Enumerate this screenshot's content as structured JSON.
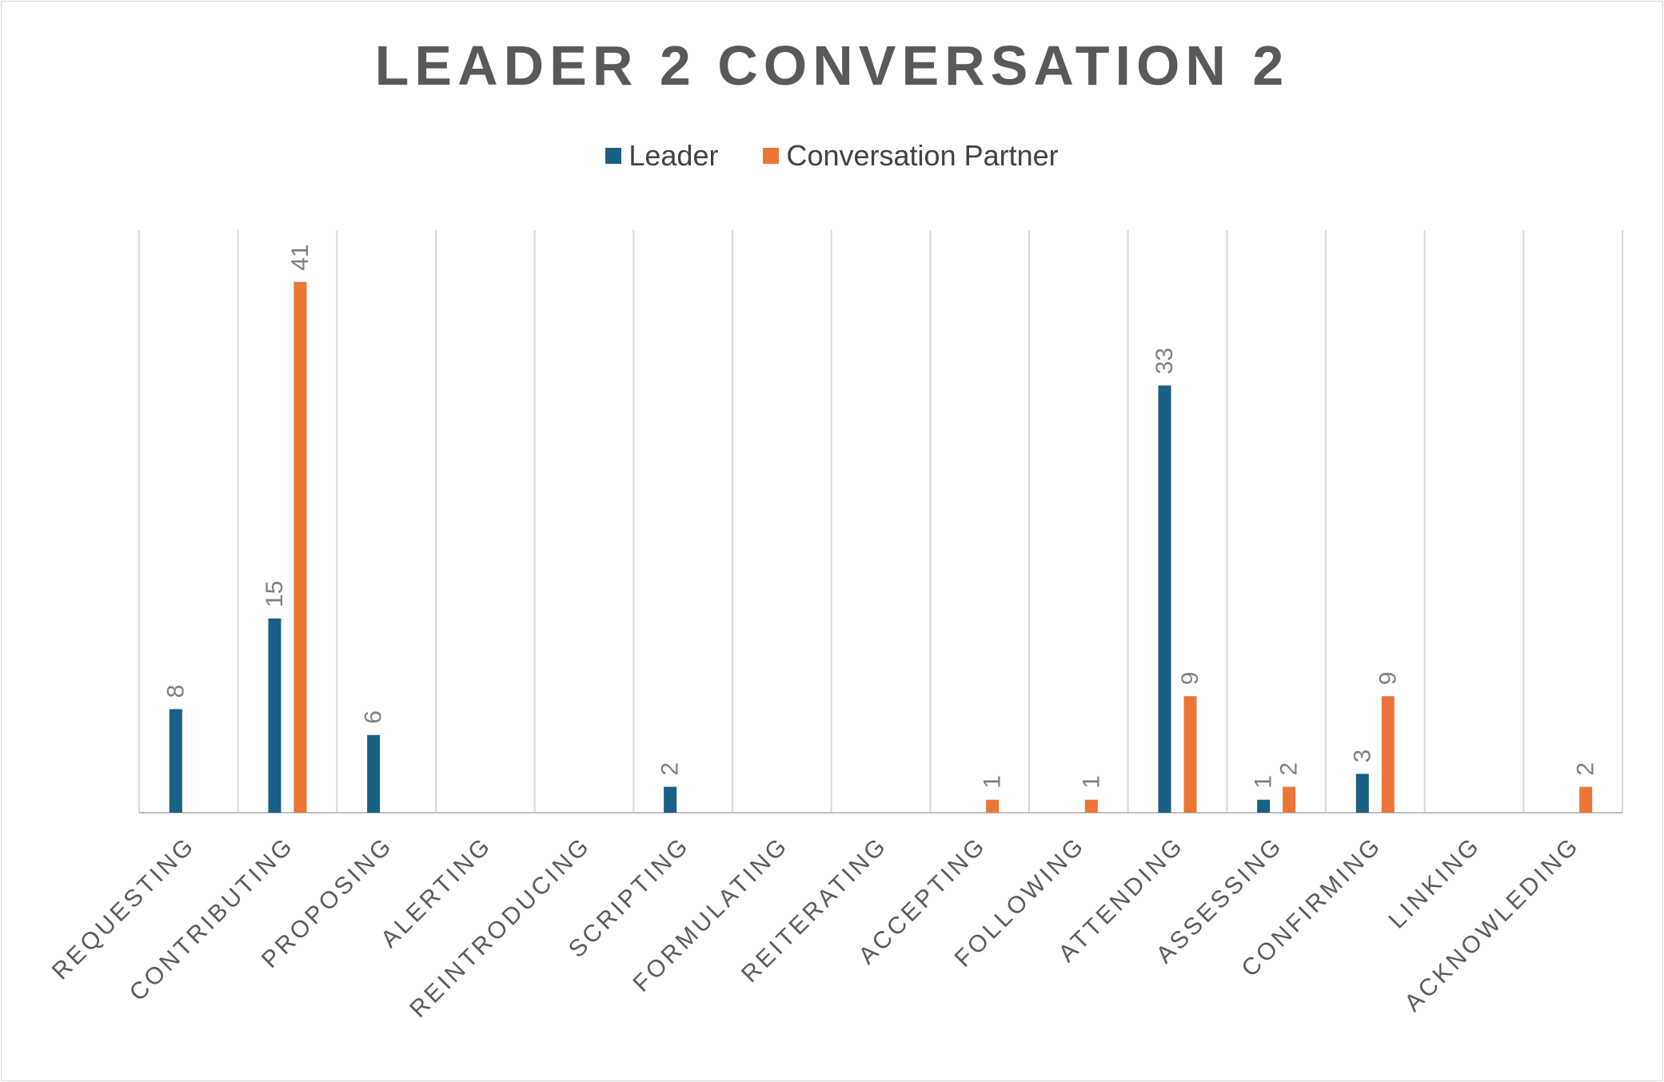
{
  "chart_data": {
    "type": "bar",
    "title": "LEADER 2 CONVERSATION 2",
    "xlabel": "",
    "ylabel": "",
    "ylim": [
      0,
      45
    ],
    "grid": "vertical category separators",
    "legend_position": "top-center",
    "categories": [
      "REQUESTING",
      "CONTRIBUTING",
      "PROPOSING",
      "ALERTING",
      "REINTRODUCING",
      "SCRIPTING",
      "FORMULATING",
      "REITERATING",
      "ACCEPTING",
      "FOLLOWING",
      "ATTENDING",
      "ASSESSING",
      "CONFIRMING",
      "LINKING",
      "ACKNOWLEDING"
    ],
    "series": [
      {
        "name": "Leader",
        "color": "#1a5f84",
        "values": [
          8,
          15,
          6,
          0,
          0,
          2,
          0,
          0,
          0,
          0,
          33,
          1,
          3,
          0,
          0
        ]
      },
      {
        "name": "Conversation Partner",
        "color": "#eb7535",
        "values": [
          0,
          41,
          0,
          0,
          0,
          0,
          0,
          0,
          1,
          1,
          9,
          2,
          9,
          0,
          2
        ]
      }
    ]
  }
}
